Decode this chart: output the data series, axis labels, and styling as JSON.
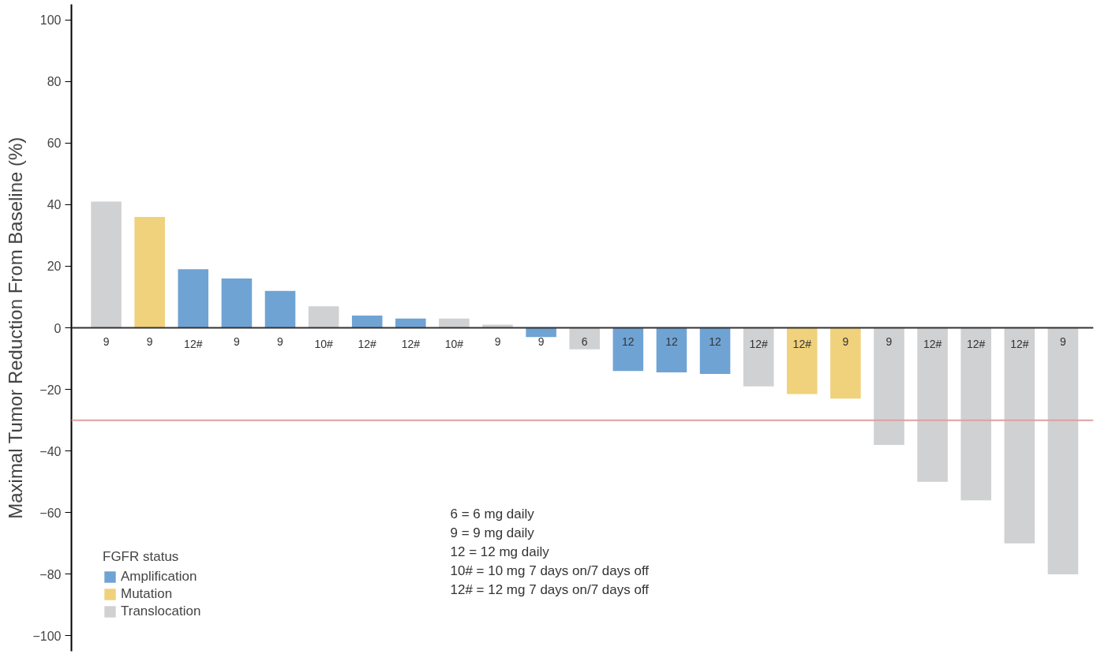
{
  "chart_data": {
    "type": "bar",
    "ylabel": "Maximal Tumor Reduction From Baseline (%)",
    "legend_title": "FGFR status",
    "legend": "bottom left",
    "categories": [
      "9",
      "9",
      "12#",
      "9",
      "9",
      "10#",
      "12#",
      "12#",
      "10#",
      "9",
      "9",
      "6",
      "12",
      "12",
      "12",
      "12#",
      "12#",
      "9",
      "9",
      "12#",
      "12#",
      "12#",
      "9"
    ],
    "series": [
      {
        "name": "Amplification",
        "color": "#6fa3d4",
        "values": [
          null,
          null,
          19,
          16,
          12,
          null,
          4,
          3,
          null,
          null,
          -3,
          null,
          -14,
          -14.5,
          -15,
          null,
          null,
          null,
          null,
          null,
          null,
          null,
          null
        ]
      },
      {
        "name": "Mutation",
        "color": "#f0d17c",
        "values": [
          null,
          36,
          null,
          null,
          null,
          null,
          null,
          null,
          null,
          null,
          null,
          null,
          null,
          null,
          null,
          null,
          -21.5,
          -23,
          null,
          null,
          null,
          null,
          null
        ]
      },
      {
        "name": "Translocation",
        "color": "#d0d1d3",
        "values": [
          41,
          null,
          null,
          null,
          null,
          7,
          null,
          null,
          3,
          1,
          null,
          -7,
          null,
          null,
          null,
          -19,
          null,
          null,
          -38,
          -50,
          -56,
          -70,
          -80
        ]
      }
    ],
    "ylim": [
      -105,
      105
    ],
    "yticks": [
      -100,
      -80,
      -60,
      -40,
      -20,
      0,
      20,
      40,
      60,
      80,
      100
    ],
    "grid": false,
    "ref_lines": [
      {
        "axis": "y",
        "value": -30,
        "color": "#e0a0a0"
      }
    ],
    "annotations": [
      "6 = 6 mg daily",
      "9 = 9 mg daily",
      "12 = 12 mg daily",
      "10# = 10 mg 7 days on/7 days off",
      "12# = 12 mg 7 days on/7 days off"
    ]
  }
}
